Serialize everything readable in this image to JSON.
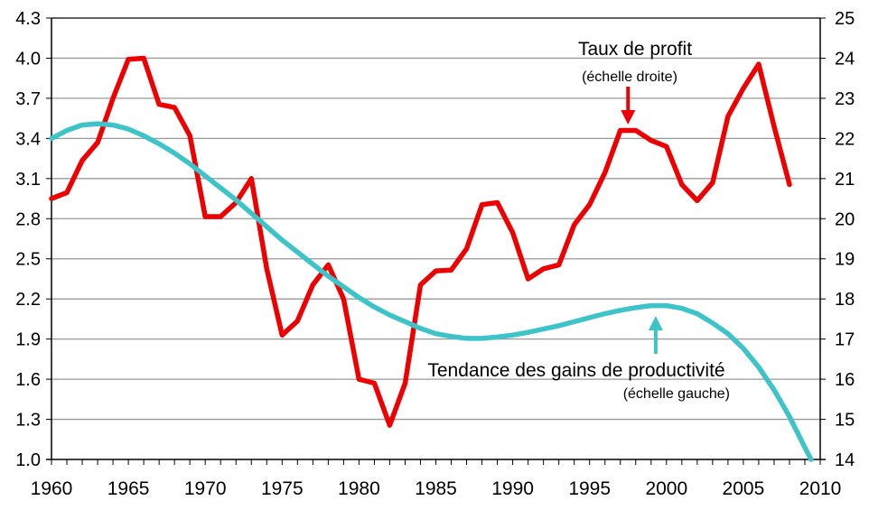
{
  "chart_data": {
    "type": "line",
    "title": "",
    "xlabel": "",
    "ylabel_left": "",
    "ylabel_right": "",
    "xlim": [
      1960,
      2010
    ],
    "ylim_left": [
      1.0,
      4.3
    ],
    "ylim_right": [
      14,
      25
    ],
    "grid": true,
    "x_ticks": [
      "1960",
      "1965",
      "1970",
      "1975",
      "1980",
      "1985",
      "1990",
      "1995",
      "2000",
      "2005",
      "2010"
    ],
    "y_left_ticks": [
      "1.0",
      "1.3",
      "1.6",
      "1.9",
      "2.2",
      "2.5",
      "2.8",
      "3.1",
      "3.4",
      "3.7",
      "4.0",
      "4.3"
    ],
    "y_right_ticks": [
      "14",
      "15",
      "16",
      "17",
      "18",
      "19",
      "20",
      "21",
      "22",
      "23",
      "24",
      "25"
    ],
    "series": [
      {
        "name": "Taux de profit",
        "axis": "right",
        "color": "#ee0000",
        "x": [
          1960,
          1961,
          1962,
          1963,
          1964,
          1965,
          1966,
          1967,
          1968,
          1969,
          1970,
          1971,
          1972,
          1973,
          1974,
          1975,
          1976,
          1977,
          1978,
          1979,
          1980,
          1981,
          1982,
          1983,
          1984,
          1985,
          1986,
          1987,
          1988,
          1989,
          1990,
          1991,
          1992,
          1993,
          1994,
          1995,
          1996,
          1997,
          1998,
          1999,
          2000,
          2001,
          2002,
          2003,
          2004,
          2005,
          2006,
          2007,
          2008
        ],
        "values": [
          20.5,
          20.65,
          21.45,
          21.9,
          23.0,
          23.97,
          24.0,
          22.85,
          22.77,
          22.07,
          20.05,
          20.05,
          20.4,
          21.0,
          18.75,
          17.1,
          17.45,
          18.35,
          18.85,
          18.0,
          16.0,
          15.9,
          14.85,
          15.9,
          18.35,
          18.7,
          18.72,
          19.25,
          20.35,
          20.4,
          19.65,
          18.5,
          18.75,
          18.85,
          19.85,
          20.35,
          21.15,
          22.2,
          22.2,
          21.95,
          21.8,
          20.85,
          20.45,
          20.9,
          22.55,
          23.25,
          23.85,
          22.3,
          20.85
        ]
      },
      {
        "name": "Tendance des gains de productivité",
        "axis": "left",
        "color": "#3cc4c8",
        "x": [
          1960,
          1961,
          1962,
          1963,
          1964,
          1965,
          1966,
          1967,
          1968,
          1969,
          1970,
          1971,
          1972,
          1973,
          1974,
          1975,
          1976,
          1977,
          1978,
          1979,
          1980,
          1981,
          1982,
          1983,
          1984,
          1985,
          1986,
          1987,
          1988,
          1989,
          1990,
          1991,
          1992,
          1993,
          1994,
          1995,
          1996,
          1997,
          1998,
          1999,
          2000,
          2001,
          2002,
          2003,
          2004,
          2005,
          2006,
          2007,
          2008,
          2009,
          2009.4
        ],
        "values": [
          3.4,
          3.46,
          3.5,
          3.51,
          3.5,
          3.47,
          3.42,
          3.36,
          3.29,
          3.21,
          3.12,
          3.03,
          2.94,
          2.84,
          2.74,
          2.64,
          2.55,
          2.46,
          2.37,
          2.29,
          2.21,
          2.14,
          2.08,
          2.03,
          1.98,
          1.94,
          1.92,
          1.905,
          1.905,
          1.915,
          1.93,
          1.95,
          1.975,
          2.0,
          2.03,
          2.06,
          2.09,
          2.115,
          2.135,
          2.15,
          2.15,
          2.13,
          2.09,
          2.02,
          1.94,
          1.83,
          1.69,
          1.52,
          1.32,
          1.09,
          1.0
        ]
      }
    ],
    "annotations": [
      {
        "title": "Taux de profit",
        "subtitle": "(échelle droite)",
        "target_year": 1997.5,
        "arrow_color": "#ee0000"
      },
      {
        "title": "Tendance des gains de productivité",
        "subtitle": "(échelle gauche)",
        "target_year": 1999.3,
        "arrow_color": "#3cc4c8"
      }
    ],
    "gridline_color": "#999999"
  }
}
